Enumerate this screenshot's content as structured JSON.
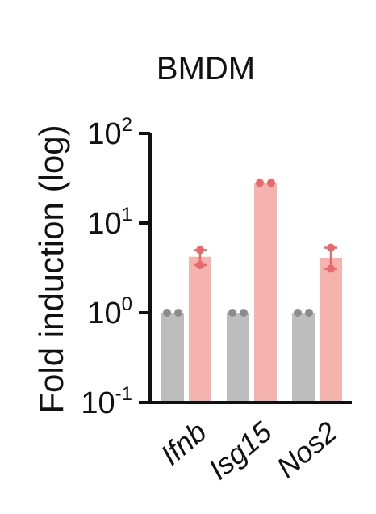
{
  "chart_data": {
    "type": "bar",
    "title": "BMDM",
    "ylabel": "Fold induction (log)",
    "xlabel": "",
    "yscale": "log",
    "ylim": [
      0.1,
      100
    ],
    "yticks": [
      {
        "base": "10",
        "exp": "-1",
        "value": 0.1
      },
      {
        "base": "10",
        "exp": "0",
        "value": 1
      },
      {
        "base": "10",
        "exp": "1",
        "value": 10
      },
      {
        "base": "10",
        "exp": "2",
        "value": 100
      }
    ],
    "categories": [
      "Ifnb",
      "Isg15",
      "Nos2"
    ],
    "series": [
      {
        "color": "#bdbdbd",
        "dotColor": "#8c8c8c",
        "values": [
          1.0,
          1.0,
          1.0
        ],
        "points": [
          [
            1.0,
            1.0
          ],
          [
            1.0,
            1.0
          ],
          [
            1.0,
            1.0
          ]
        ],
        "err": [
          null,
          null,
          null
        ]
      },
      {
        "color": "#f4b3ae",
        "dotColor": "#e8696c",
        "values": [
          4.2,
          28,
          4.1
        ],
        "points": [
          [
            5.0,
            3.4
          ],
          [
            28,
            28
          ],
          [
            5.3,
            3.1
          ]
        ],
        "err": [
          [
            3.4,
            5.0
          ],
          null,
          [
            3.1,
            5.3
          ]
        ]
      }
    ],
    "grid": false,
    "legend": "none"
  }
}
